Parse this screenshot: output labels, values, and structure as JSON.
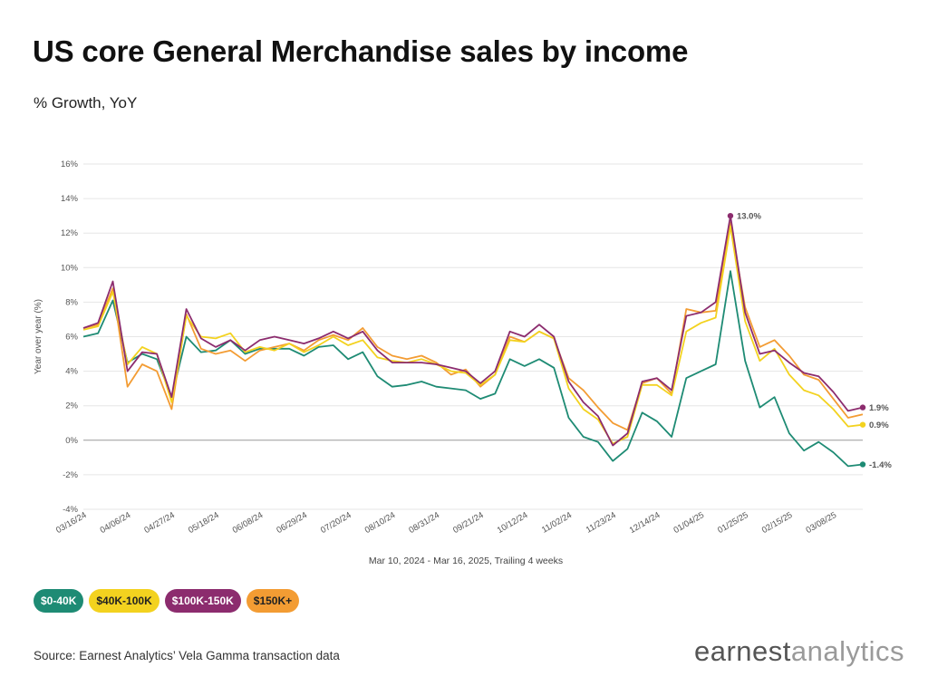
{
  "header": {
    "title": "US core General Merchandise sales by income",
    "subtitle": "% Growth, YoY"
  },
  "footer": {
    "source": "Source: Earnest Analytics’ Vela Gamma transaction data",
    "logo_left": "earnest",
    "logo_right": "analytics"
  },
  "chart_data": {
    "type": "line",
    "ylabel": "Year over year (%)",
    "xlabel": "Mar 10, 2024 - Mar 16, 2025, Trailing 4 weeks",
    "ylim": [
      -4,
      16
    ],
    "yticks": [
      -4,
      -2,
      0,
      2,
      4,
      6,
      8,
      10,
      12,
      14,
      16
    ],
    "ytick_labels": [
      "-4%",
      "-2%",
      "0%",
      "2%",
      "4%",
      "6%",
      "8%",
      "10%",
      "12%",
      "14%",
      "16%"
    ],
    "x_tick_labels": [
      "03/16/24",
      "04/06/24",
      "04/27/24",
      "05/18/24",
      "06/08/24",
      "06/29/24",
      "07/20/24",
      "08/10/24",
      "08/31/24",
      "09/21/24",
      "10/12/24",
      "11/02/24",
      "11/23/24",
      "12/14/24",
      "01/04/25",
      "01/25/25",
      "02/15/25",
      "03/08/25"
    ],
    "x_tick_every": 3,
    "grid": true,
    "legend_position": "bottom-left",
    "series": [
      {
        "name": "$0-40K",
        "color": "#1e8b74",
        "label_color": "#ffffff",
        "end_label": "-1.4%",
        "values": [
          6.0,
          6.2,
          8.1,
          4.5,
          5.0,
          4.7,
          2.5,
          6.0,
          5.1,
          5.2,
          5.8,
          5.0,
          5.3,
          5.3,
          5.3,
          4.9,
          5.4,
          5.5,
          4.7,
          5.1,
          3.7,
          3.1,
          3.2,
          3.4,
          3.1,
          3.0,
          2.9,
          2.4,
          2.7,
          4.7,
          4.3,
          4.7,
          4.2,
          1.3,
          0.2,
          -0.1,
          -1.2,
          -0.5,
          1.6,
          1.1,
          0.2,
          3.6,
          4.0,
          4.4,
          9.8,
          4.6,
          1.9,
          2.5,
          0.4,
          -0.6,
          -0.1,
          -0.7,
          -1.5,
          -1.4
        ]
      },
      {
        "name": "$40K-100K",
        "color": "#f3d21f",
        "label_color": "#222222",
        "end_label": "0.9%",
        "values": [
          6.4,
          6.6,
          8.6,
          4.4,
          5.4,
          5.0,
          2.2,
          7.2,
          6.0,
          5.9,
          6.2,
          5.1,
          5.4,
          5.2,
          5.6,
          5.1,
          5.5,
          6.0,
          5.5,
          5.8,
          4.8,
          4.6,
          4.5,
          4.7,
          4.4,
          4.0,
          3.9,
          3.2,
          3.8,
          5.8,
          5.7,
          6.3,
          5.9,
          3.0,
          1.8,
          1.2,
          -0.2,
          0.2,
          3.2,
          3.2,
          2.6,
          6.3,
          6.8,
          7.1,
          12.4,
          6.9,
          4.6,
          5.3,
          3.8,
          2.9,
          2.6,
          1.8,
          0.8,
          0.9
        ]
      },
      {
        "name": "$100K-150K",
        "color": "#8c2c6e",
        "label_color": "#ffffff",
        "end_label": "1.9%",
        "peak_label": "13.0%",
        "values": [
          6.5,
          6.8,
          9.2,
          4.0,
          5.1,
          5.0,
          2.5,
          7.6,
          5.9,
          5.4,
          5.8,
          5.2,
          5.8,
          6.0,
          5.8,
          5.6,
          5.9,
          6.3,
          5.9,
          6.3,
          5.2,
          4.5,
          4.5,
          4.5,
          4.4,
          4.2,
          4.0,
          3.3,
          4.0,
          6.3,
          6.0,
          6.7,
          6.0,
          3.4,
          2.2,
          1.4,
          -0.3,
          0.4,
          3.4,
          3.6,
          2.9,
          7.2,
          7.4,
          8.0,
          13.0,
          7.4,
          5.0,
          5.2,
          4.5,
          3.9,
          3.7,
          2.8,
          1.7,
          1.9
        ]
      },
      {
        "name": "$150K+",
        "color": "#f39c33",
        "label_color": "#222222",
        "values": [
          6.5,
          6.7,
          8.8,
          3.1,
          4.4,
          4.0,
          1.8,
          7.3,
          5.3,
          5.0,
          5.2,
          4.6,
          5.2,
          5.4,
          5.6,
          5.2,
          5.8,
          6.1,
          5.8,
          6.5,
          5.4,
          4.9,
          4.7,
          4.9,
          4.5,
          3.8,
          4.1,
          3.1,
          3.8,
          6.0,
          5.7,
          6.3,
          5.9,
          3.6,
          2.9,
          1.9,
          1.0,
          0.6,
          3.3,
          3.6,
          2.7,
          7.6,
          7.4,
          7.5,
          12.6,
          7.7,
          5.4,
          5.8,
          4.9,
          3.8,
          3.5,
          2.4,
          1.3,
          1.5
        ]
      }
    ]
  }
}
